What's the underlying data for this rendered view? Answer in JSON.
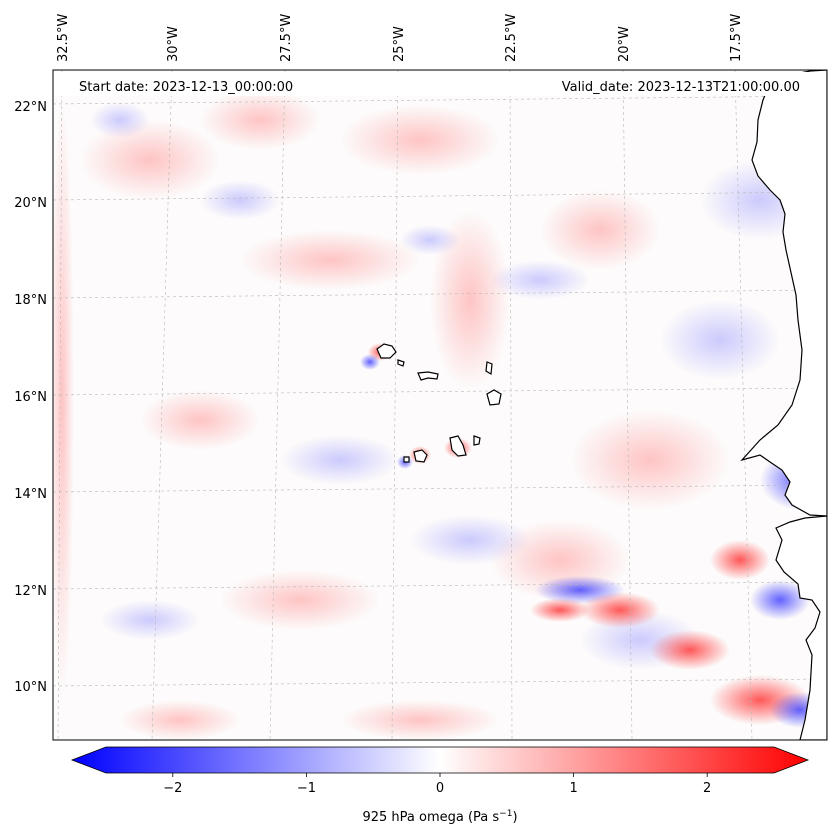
{
  "header": {
    "start_date": "Start date: 2023-12-13_00:00:00",
    "valid_date": "Valid_date: 2023-12-13T21:00:00.00"
  },
  "longitude_labels": [
    "32.5°W",
    "30°W",
    "27.5°W",
    "25°W",
    "22.5°W",
    "20°W",
    "17.5°W"
  ],
  "latitude_labels": [
    "22°N",
    "20°N",
    "18°N",
    "16°N",
    "14°N",
    "12°N",
    "10°N"
  ],
  "colorbar": {
    "ticks": [
      "−2",
      "−1",
      "0",
      "1",
      "2"
    ],
    "tick_values": [
      -2,
      -1,
      0,
      1,
      2
    ],
    "range": [
      -2.75,
      2.75
    ],
    "label_main": "925 hPa omega (Pa s",
    "label_sup": "−1",
    "label_end": ")",
    "colormap": "bwr",
    "color_min": "#0000ff",
    "color_mid": "#ffffff",
    "color_max": "#ff0000"
  },
  "colors": {
    "coastline": "#000000",
    "gridline": "#b8b8b8",
    "land_fill": "#ffffff"
  }
}
